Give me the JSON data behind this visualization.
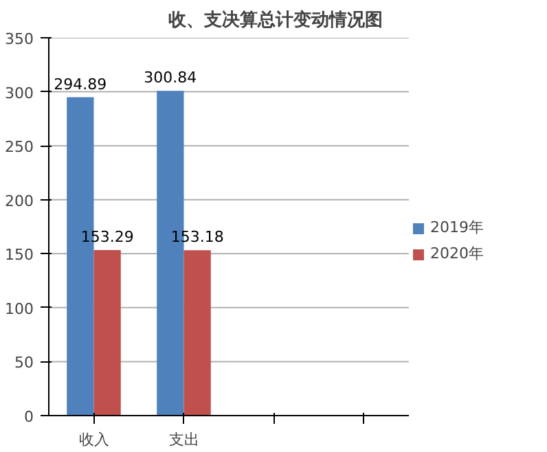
{
  "chart_data": {
    "type": "bar",
    "title": "收、支决算总计变动情况图",
    "categories": [
      "收入",
      "支出",
      null,
      null
    ],
    "series": [
      {
        "name": "2019年",
        "color": "#4f81bd",
        "values": [
          294.89,
          300.84,
          null,
          null
        ]
      },
      {
        "name": "2020年",
        "color": "#c0504d",
        "values": [
          153.29,
          153.18,
          null,
          null
        ]
      }
    ],
    "ylim": [
      0,
      350
    ],
    "yticks": [
      0,
      50,
      100,
      150,
      200,
      250,
      300,
      350
    ],
    "grid": "y",
    "legend": "right",
    "data_labels": true
  }
}
